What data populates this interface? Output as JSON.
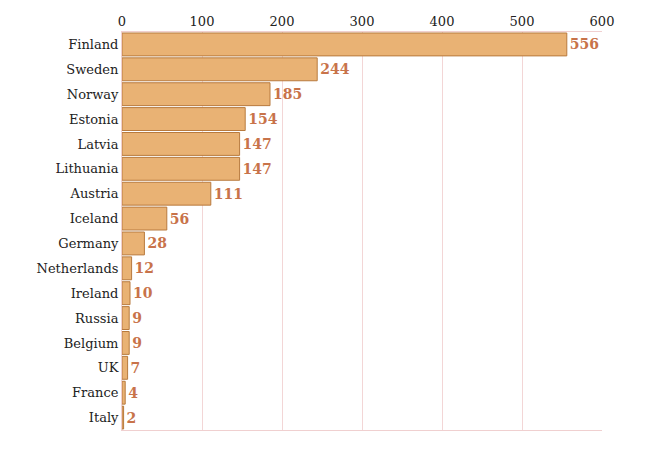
{
  "chart_data": {
    "type": "bar",
    "orientation": "horizontal",
    "categories": [
      "Finland",
      "Sweden",
      "Norway",
      "Estonia",
      "Latvia",
      "Lithuania",
      "Austria",
      "Iceland",
      "Germany",
      "Netherlands",
      "Ireland",
      "Russia",
      "Belgium",
      "UK",
      "France",
      "Italy"
    ],
    "values": [
      556,
      244,
      185,
      154,
      147,
      147,
      111,
      56,
      28,
      12,
      10,
      9,
      9,
      7,
      4,
      2
    ],
    "color": "#e9b274",
    "xlim": [
      0,
      600
    ],
    "xticks": [
      0,
      100,
      200,
      300,
      400,
      500,
      600
    ],
    "grid": true,
    "data_labels": true
  }
}
